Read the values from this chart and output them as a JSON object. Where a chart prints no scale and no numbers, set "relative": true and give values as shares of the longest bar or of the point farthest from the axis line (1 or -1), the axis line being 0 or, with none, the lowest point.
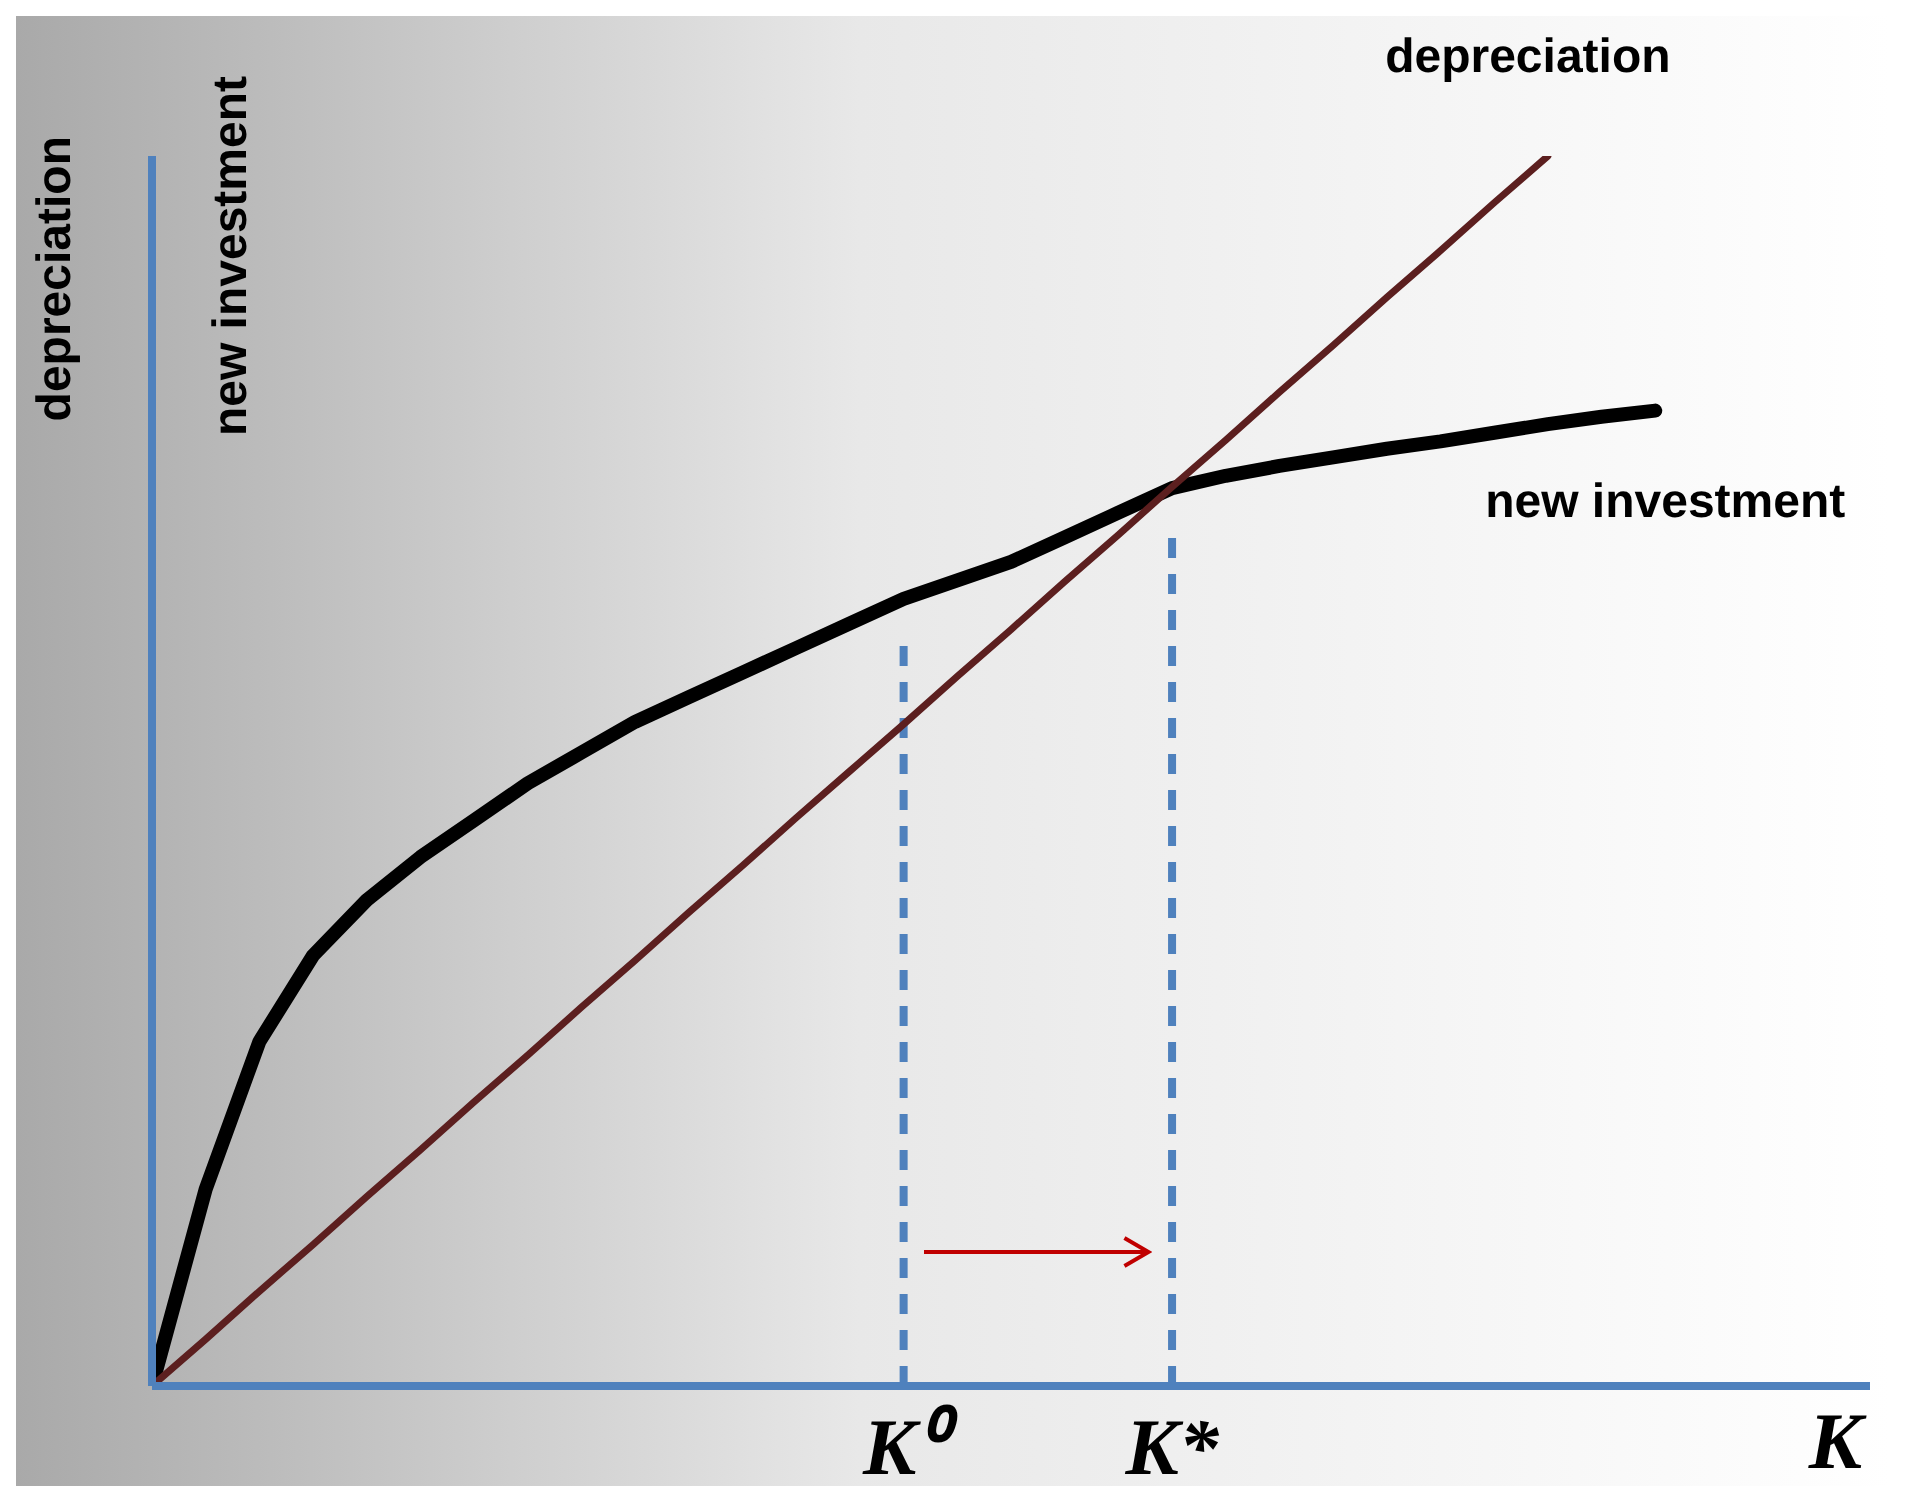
{
  "chart_data": {
    "type": "line",
    "relative": true,
    "xlabel": "K",
    "ylabel": "depreciation",
    "annotations": [
      "new investment"
    ],
    "legend": false,
    "grid": false,
    "marker": "none",
    "tick_labels": "x",
    "categories": [
      null,
      null,
      null,
      null,
      null,
      null,
      null,
      null,
      null,
      null,
      null,
      null,
      null,
      null,
      "K⁰",
      null,
      null,
      null,
      null,
      "K*",
      null,
      null,
      null,
      null,
      null,
      null,
      null,
      null,
      null,
      null,
      null,
      null,
      null
    ],
    "series": [
      {
        "name": "new investment",
        "color": "#000000",
        "values": [
          0,
          0.16,
          0.28,
          0.35,
          0.395,
          0.43,
          0.46,
          0.49,
          0.515,
          0.54,
          0.56,
          0.58,
          0.6,
          0.62,
          0.64,
          0.655,
          0.67,
          0.69,
          0.71,
          0.73,
          0.74,
          0.748,
          0.755,
          0.762,
          0.768,
          0.775,
          0.782,
          0.788,
          0.793,
          null,
          null,
          null,
          null
        ]
      },
      {
        "name": "depreciation",
        "color": "#5c1f1f",
        "values": [
          0,
          0.038,
          0.077,
          0.115,
          0.154,
          0.192,
          0.231,
          0.269,
          0.308,
          0.346,
          0.385,
          0.423,
          0.462,
          0.5,
          0.538,
          0.577,
          0.615,
          0.654,
          0.692,
          0.731,
          0.769,
          0.808,
          0.846,
          0.885,
          0.923,
          0.962,
          1,
          null,
          null,
          null,
          null,
          null,
          null
        ]
      }
    ],
    "ref_lines": [
      {
        "axis": "x",
        "value": "K⁰",
        "color": "#4f81bd",
        "line_style": "dashed"
      },
      {
        "axis": "x",
        "value": "K*",
        "color": "#4f81bd",
        "line_style": "dashed"
      }
    ]
  }
}
